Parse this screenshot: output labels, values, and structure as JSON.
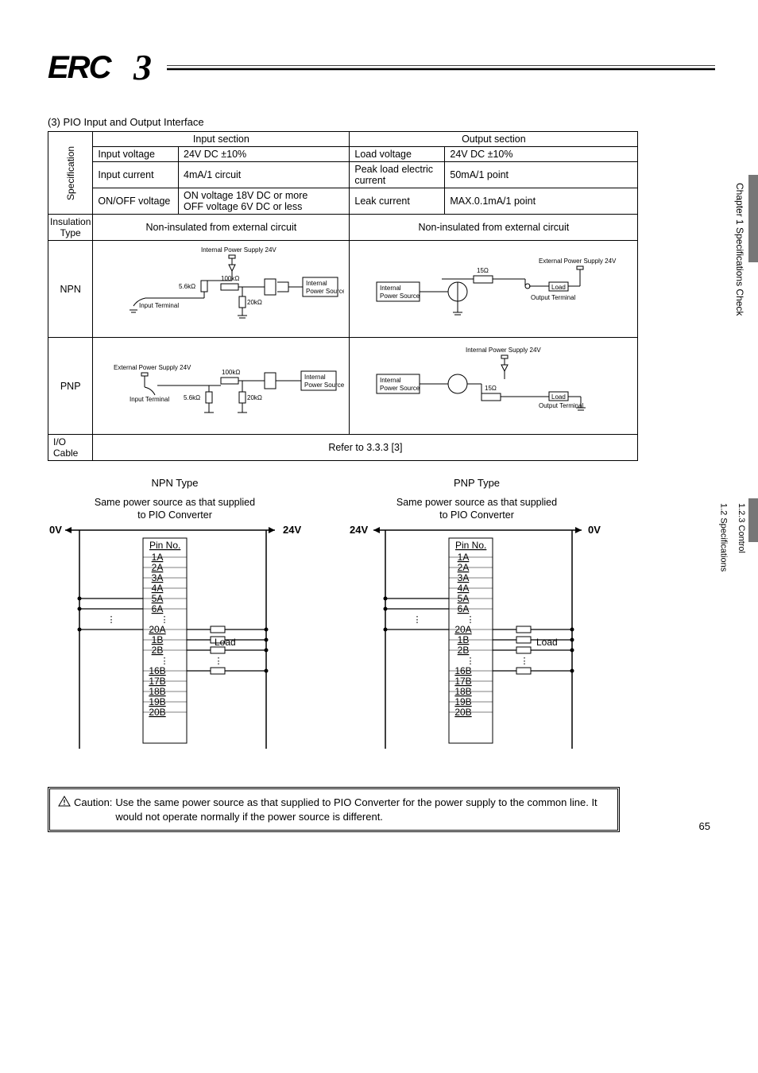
{
  "logo_text": "ERC3",
  "section_heading": "(3) PIO Input and Output Interface",
  "table": {
    "input_header": "Input section",
    "output_header": "Output section",
    "spec_rowlabel": "Specification",
    "rows": {
      "r1c1": "Input voltage",
      "r1c2": "24V DC ±10%",
      "r1c3": "Load voltage",
      "r1c4": "24V DC ±10%",
      "r2c1": "Input current",
      "r2c2": "4mA/1 circuit",
      "r2c3": "Peak load electric current",
      "r2c4": "50mA/1 point",
      "r3c1": "ON/OFF voltage",
      "r3c2": "ON voltage 18V DC or more\nOFF voltage 6V DC or less",
      "r3c3": "Leak current",
      "r3c4": "MAX.0.1mA/1 point"
    },
    "insulation_label": "Insulation Type",
    "insulation_in": "Non-insulated from external circuit",
    "insulation_out": "Non-insulated from external circuit",
    "npn_label": "NPN",
    "pnp_label": "PNP",
    "io_cable_label": "I/O Cable",
    "io_cable_value": "Refer to 3.3.3 [3]"
  },
  "circuit": {
    "internal_ps_24v": "Internal Power Supply 24V",
    "external_ps_24v": "External Power Supply 24V",
    "input_terminal": "Input Terminal",
    "output_terminal": "Output Terminal",
    "internal_power_source": "Internal\nPower Source",
    "internal_power_source_inline": "Internal Power Source",
    "load": "Load",
    "r5_6k": "5.6kΩ",
    "r100k": "100kΩ",
    "r20k": "20kΩ",
    "r15": "15Ω"
  },
  "wiring": {
    "npn_title": "NPN Type",
    "pnp_title": "PNP Type",
    "same_power": "Same power source as that supplied",
    "to_pio": "to PIO Converter",
    "v0": "0V",
    "v24": "24V",
    "pin_no": "Pin No.",
    "pins_top": [
      "1A",
      "2A",
      "3A",
      "4A",
      "5A",
      "6A"
    ],
    "dots": "⋮",
    "pin_20a": "20A",
    "pins_mid": [
      "1B",
      "2B"
    ],
    "pins_bot": [
      "16B",
      "17B",
      "18B",
      "19B",
      "20B"
    ],
    "load": "Load"
  },
  "caution": {
    "label": "Caution:",
    "text": "Use the same power source as that supplied to PIO Converter for the power supply to the common line. It would not operate normally if the power source is different."
  },
  "sidebar": {
    "chapter": "Chapter 1 Specifications Check",
    "sub1": "1.2 Specifications",
    "sub2": "1.2.3 Control"
  },
  "page_number": "65"
}
